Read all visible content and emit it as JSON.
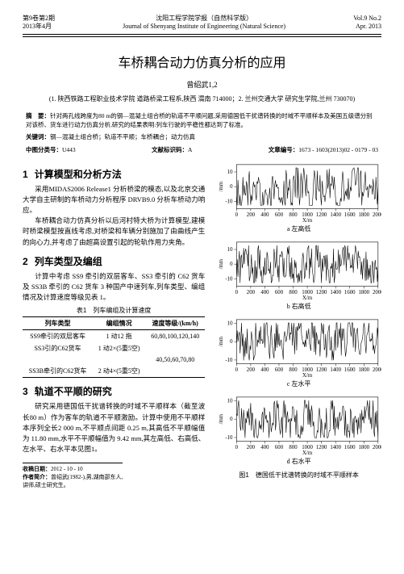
{
  "header": {
    "issue_cn": "第9卷第2期",
    "date_cn": "2013年4月",
    "journal_cn": "沈阳工程学院学报（自然科学版）",
    "journal_en": "Journal of Shenyang Institute of Engineering (Natural Science)",
    "vol_en": "Vol.9 No.2",
    "date_en": "Apr. 2013"
  },
  "title": "车桥耦合动力仿真分析的应用",
  "author": "曾绍武1,2",
  "affiliation": "(1. 陕西铁路工程职业技术学院 道路桥梁工程系,陕西 渭南 714000；2. 兰州交通大学 研究生学院,兰州 730070)",
  "abstract_label": "摘　要：",
  "abstract": "针对两孔线跨度为80 m的钢—混凝土组合桥的轨道不平顺问题,采用德国低干扰谱转换的时域不平顺样本及美国五级谱分别对该桥、货车进行动力仿真分析,研究的结果表明:列车行驶的平稳性都达到了标准。",
  "keywords_label": "关键词：",
  "keywords": "钢—混凝土组合桥；轨道不平顺；车桥耦合；动力仿真",
  "clc_label": "中图分类号：",
  "clc": "U443",
  "doc_code_label": "文献标识码：",
  "doc_code": "A",
  "article_id_label": "文章编号：",
  "article_id": "1673 - 1603(2013)02 - 0179 - 03",
  "sections": {
    "s1": {
      "num": "1",
      "title": "计算模型和分析方法",
      "p1": "采用MIDAS2006 Release1 分析桥梁的模态,以及北京交通大学自主研制的车桥动力分析程序 DRVB9.0 分析车桥动力响应。",
      "p2": "车桥耦合动力仿真分析以后河村特大桥为计算模型,建模时桥梁模型按直线考虑,对桥梁和车辆分别施加了由曲线产生的向心力,并考虑了由超高设置引起的轮轨作用力夹角。"
    },
    "s2": {
      "num": "2",
      "title": "列车类型及编组",
      "p1": "计算中考虑 SS9 牵引的双层客车、SS3 牵引的 C62 货车及 SS3B 牵引的 C62 货车 3 种国产中速列车,列车类型、编组情况及计算速度等级见表 1。"
    },
    "s3": {
      "num": "3",
      "title": "轨道不平顺的研究",
      "p1": "研究采用德国低干扰谱转换的时域不平顺样本（截至波长80 m）作为客车的轨道不平顺激励。计算中使用不平顺样本序列全长2 000 m,不平顺点间距 0.25 m,其高低不平顺幅值为 11.80 mm,水平不平顺幅值为 9.42 mm,其左高低、右高低、左水平、右水平本见图1。"
    }
  },
  "table1": {
    "caption": "表1　列车编组及计算速度",
    "headers": [
      "列车类型",
      "编组情况",
      "速度等级/(km/h)"
    ],
    "rows": [
      [
        "SS9牵引的双层客车",
        "1 动12 拖",
        "60,80,100,120,140"
      ],
      [
        "SS3引的C62货车",
        "1 动2×(5重5空)",
        ""
      ],
      [
        "",
        "",
        "40,50,60,70,80"
      ],
      [
        "SS3B牵引的C62货车",
        "2 动4×(5重5空)",
        ""
      ]
    ]
  },
  "charts": {
    "common": {
      "line_color": "#000000",
      "axis_color": "#000000",
      "background": "#ffffff",
      "line_width": 0.6,
      "axis_fontsize": 7,
      "xlabel": "X/m",
      "ylabel": "/mm",
      "xlim": [
        0,
        2000
      ],
      "xtick_step": 200,
      "amplitude_mm": 12,
      "noise_points": 200
    },
    "panels": [
      {
        "id": "chart-a",
        "caption": "a 左高低",
        "ylim": [
          -15,
          15
        ],
        "ytick": [
          -10,
          0,
          10
        ],
        "seed": 1
      },
      {
        "id": "chart-b",
        "caption": "b 右高低",
        "ylim": [
          -15,
          15
        ],
        "ytick": [
          -10,
          0,
          10
        ],
        "seed": 2
      },
      {
        "id": "chart-c",
        "caption": "c 左水平",
        "ylim": [
          -12,
          12
        ],
        "ytick": [
          -10,
          0,
          10
        ],
        "seed": 3
      },
      {
        "id": "chart-d",
        "caption": "d 右水平",
        "ylim": [
          -12,
          12
        ],
        "ytick": [
          -10,
          0,
          10
        ],
        "seed": 4
      }
    ],
    "fig_caption": "图1　德国低干扰谱转换的时域不平顺样本"
  },
  "footnote": {
    "recv_label": "收稿日期：",
    "recv": "2012 - 10 - 10",
    "author_label": "作者简介：",
    "author_info": "曾绍武(1982-),男,湖南邵东人,讲师,硕士研究生。"
  }
}
